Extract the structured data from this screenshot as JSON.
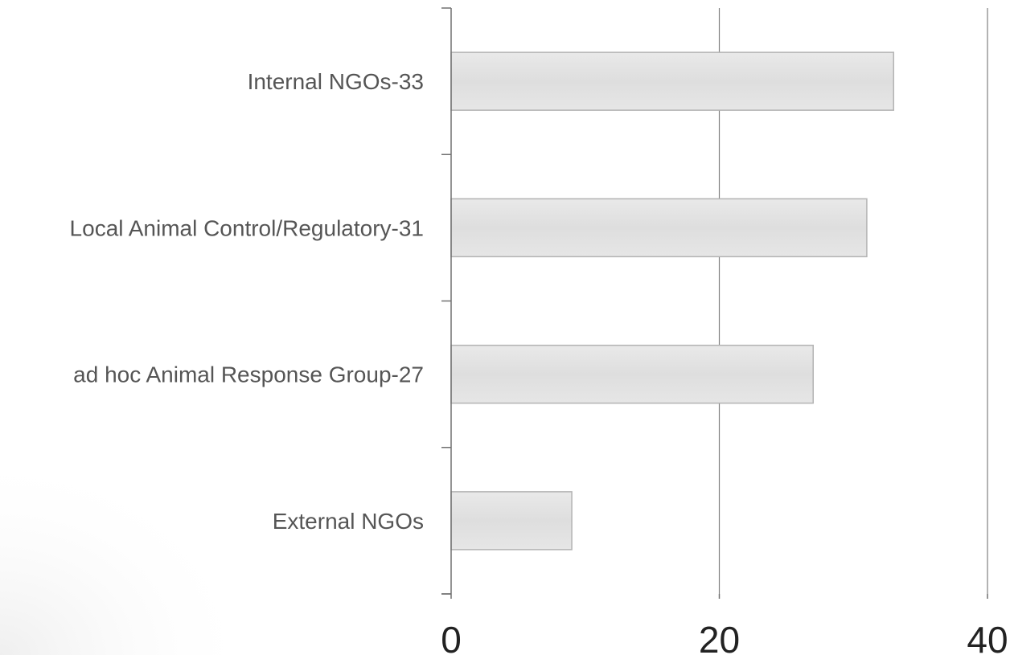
{
  "chart_data": {
    "type": "bar",
    "orientation": "horizontal",
    "categories": [
      "Internal NGOs-33",
      "Local Animal Control/Regulatory-31",
      "ad hoc Animal Response Group-27",
      "External NGOs"
    ],
    "values": [
      33,
      31,
      27,
      9
    ],
    "xlim": [
      0,
      40
    ],
    "x_ticks": [
      "0",
      "20",
      "40"
    ],
    "grid": true,
    "legend": "none"
  },
  "colors": {
    "bar_fill": "#e3e3e3",
    "bar_stroke": "#b3b3b3",
    "grid": "#808080",
    "axis": "#707070",
    "category_text": "#555555",
    "tick_text": "#222222"
  }
}
